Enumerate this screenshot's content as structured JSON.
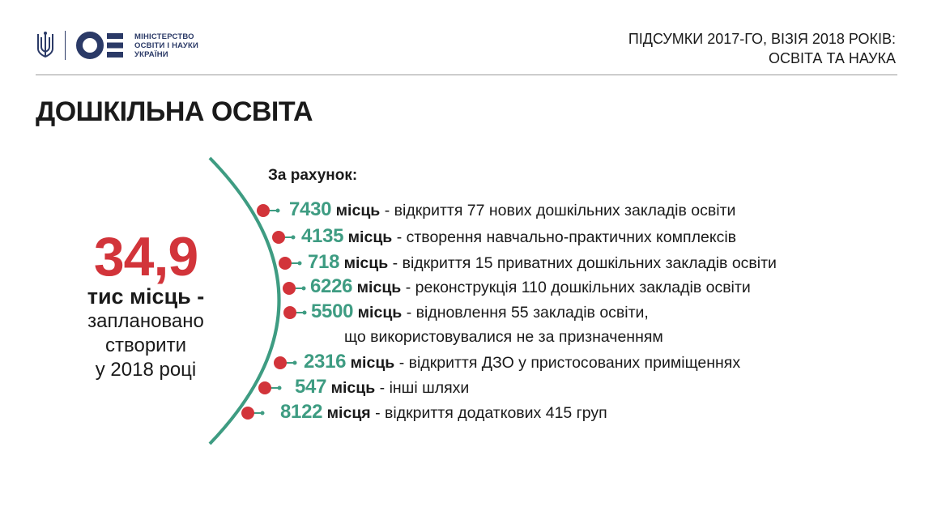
{
  "header": {
    "ministry_lines": [
      "МІНІСТЕРСТВО",
      "ОСВІТИ І НАУКИ",
      "УКРАЇНИ"
    ],
    "summary_line1": "ПІДСУМКИ 2017-ГО, ВІЗІЯ 2018 РОКІВ:",
    "summary_line2": "ОСВІТА ТА НАУКА"
  },
  "title": "ДОШКІЛЬНА ОСВІТА",
  "total": {
    "value": "34,9",
    "units": "тис місць -",
    "planned_lines": [
      "заплановано",
      "створити",
      "у 2018 році"
    ]
  },
  "basis_label": "За рахунок:",
  "items": [
    {
      "number": "7430",
      "unit": "місць",
      "text": " - відкриття 77 нових дошкільних закладів освіти"
    },
    {
      "number": "4135",
      "unit": "місць",
      "text": " - створення навчально-практичних комплексів"
    },
    {
      "number": "718",
      "unit": "місць",
      "text": " - відкриття 15 приватних дошкільних закладів освіти"
    },
    {
      "number": "6226",
      "unit": "місць",
      "text": " - реконструкція 110 дошкільних закладів освіти"
    },
    {
      "number": "5500",
      "unit": "місць",
      "text": " - відновлення 55 закладів освіти,",
      "continuation": "що використовувалися не за призначенням"
    },
    {
      "number": "2316",
      "unit": "місць",
      "text": " - відкриття ДЗО у пристосованих приміщеннях"
    },
    {
      "number": "547",
      "unit": "місць",
      "text": " - інші шляхи"
    },
    {
      "number": "8122",
      "unit": "місця",
      "text": " - відкриття додаткових 415 груп"
    }
  ],
  "colors": {
    "accent_red": "#d2343a",
    "accent_green": "#3e9c82",
    "brand_navy": "#2b3a67",
    "text": "#1a1a1a"
  },
  "icons": [
    "trident-icon",
    "ministry-logo-icon"
  ]
}
